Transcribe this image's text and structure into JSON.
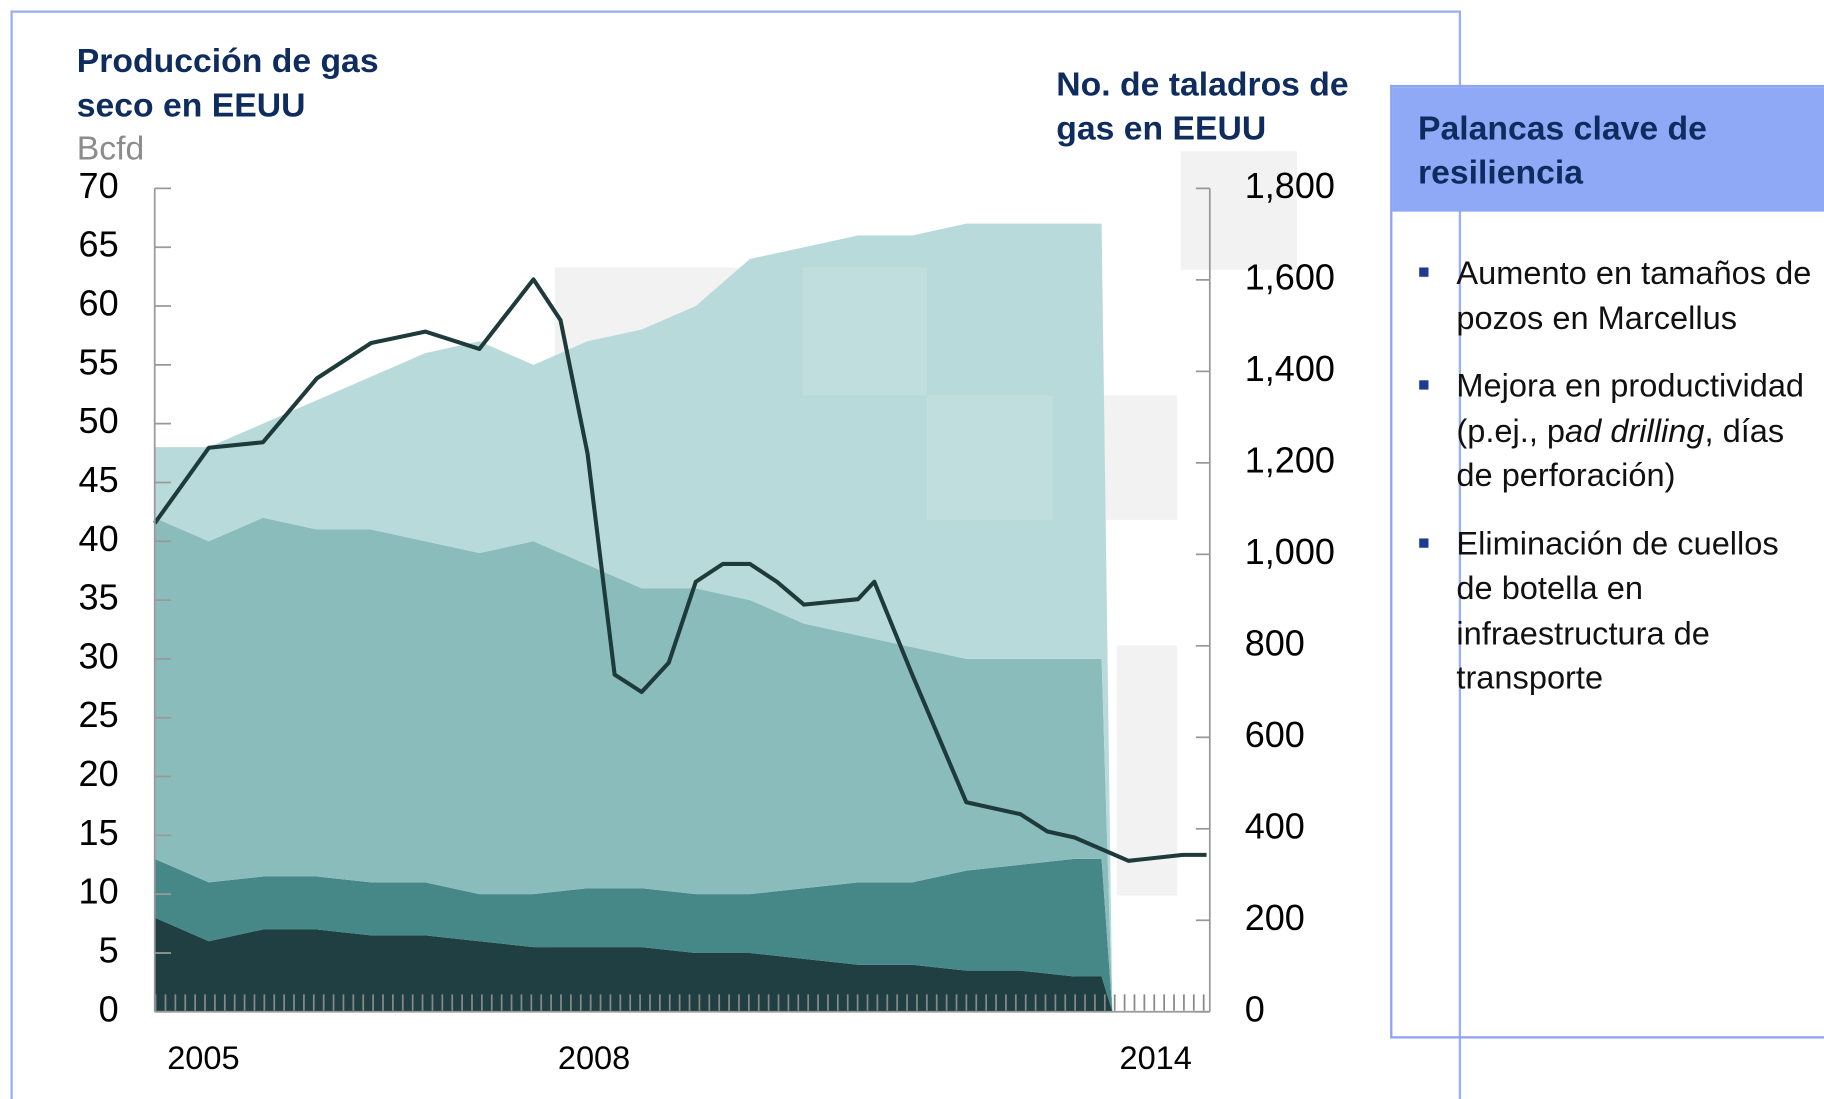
{
  "chart_data": {
    "type": "area",
    "stacked": true,
    "title": "Producción de gas seco en EEUU",
    "y_unit": "Bcfd",
    "y2_title": "No. de taladros de gas en EEUU",
    "x": [
      2005,
      2005.5,
      2006,
      2006.5,
      2007,
      2007.5,
      2008,
      2008.5,
      2009,
      2009.5,
      2010,
      2010.5,
      2011,
      2011.5,
      2012,
      2012.5,
      2013,
      2013.5,
      2013.75,
      2013.85
    ],
    "xlim": [
      2005,
      2014.75
    ],
    "xticks": [
      {
        "value": 2005.45,
        "label": "2005"
      },
      {
        "value": 2009.06,
        "label": "2008"
      },
      {
        "value": 2014.25,
        "label": "2014"
      }
    ],
    "ylim": [
      0,
      70
    ],
    "yticks": [
      0,
      5,
      10,
      15,
      20,
      25,
      30,
      35,
      40,
      45,
      50,
      55,
      60,
      65,
      70
    ],
    "y2lim": [
      0,
      1800
    ],
    "y2ticks": [
      0,
      200,
      400,
      600,
      800,
      {
        "value": 1000,
        "label": "1,000"
      },
      {
        "value": 1200,
        "label": "1,200"
      },
      {
        "value": 1400,
        "label": "1,400"
      },
      {
        "value": 1600,
        "label": "1,600"
      },
      {
        "value": 1800,
        "label": "1,800"
      }
    ],
    "series": [
      {
        "color": "#1f3f42",
        "values": [
          8,
          6,
          7,
          7,
          6.5,
          6.5,
          6,
          5.5,
          5.5,
          5.5,
          5,
          5,
          4.5,
          4,
          4,
          3.5,
          3.5,
          3,
          3,
          0
        ]
      },
      {
        "color": "#468788",
        "values": [
          5,
          5,
          4.5,
          4.5,
          4.5,
          4.5,
          4,
          4.5,
          5,
          5,
          5,
          5,
          6,
          7,
          7,
          8.5,
          9,
          10,
          10,
          0
        ]
      },
      {
        "color": "#8abcbc",
        "values": [
          29,
          29,
          30.5,
          29.5,
          30,
          29,
          29,
          30,
          27.5,
          25.5,
          26,
          25,
          22.5,
          21,
          20,
          18,
          17.5,
          17,
          17,
          0
        ]
      },
      {
        "color": "#b9dada",
        "values": [
          6,
          8,
          8,
          11,
          13,
          16,
          18,
          15,
          19,
          22,
          24,
          29,
          32,
          34,
          35,
          37,
          37,
          37,
          37,
          0
        ]
      },
      {
        "type": "line",
        "axis": "y2",
        "color": "#1e3a3a",
        "x": [
          2005,
          2005.5,
          2006,
          2006.5,
          2007,
          2007.5,
          2008,
          2008.5,
          2008.75,
          2009,
          2009.25,
          2009.5,
          2009.75,
          2010,
          2010.25,
          2010.5,
          2010.75,
          2011,
          2011.5,
          2011.65,
          2012,
          2012.5,
          2013,
          2013.25,
          2013.5,
          2014,
          2014.5,
          2014.72
        ],
        "values": [
          1068,
          1233,
          1245,
          1385,
          1462,
          1487,
          1449,
          1601,
          1512,
          1220,
          737,
          699,
          763,
          940,
          979,
          979,
          940,
          890,
          902,
          940,
          737,
          458,
          432,
          394,
          381,
          330,
          343,
          343
        ]
      }
    ]
  },
  "panel": {
    "title": "Palancas clave de resiliencia",
    "bullets": [
      [
        "Aumento en tamaños de pozos en Marcellus"
      ],
      [
        "Mejora en productividad (p.ej., p",
        "ad drilling",
        ", días de perforación)"
      ],
      [
        "Eliminación de cuellos de botella en infraestructura de transporte"
      ]
    ]
  }
}
